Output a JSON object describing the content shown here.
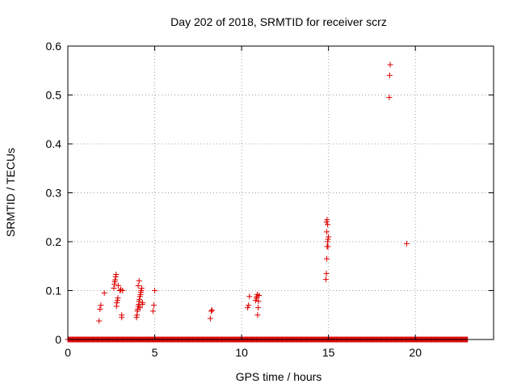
{
  "chart_data": {
    "type": "scatter",
    "title": "Day 202 of 2018, SRMTID for receiver scrz",
    "xlabel": "GPS time / hours",
    "ylabel": "SRMTID / TECUs",
    "xlim": [
      0,
      24.5
    ],
    "ylim": [
      0,
      0.6
    ],
    "xticks": [
      0,
      5,
      10,
      15,
      20
    ],
    "yticks": [
      0,
      0.1,
      0.2,
      0.3,
      0.4,
      0.5,
      0.6
    ],
    "xtick_labels": [
      "0",
      "5",
      "10",
      "15",
      "20"
    ],
    "ytick_labels": [
      "0",
      "0.1",
      "0.2",
      "0.3",
      "0.4",
      "0.5",
      "0.6"
    ],
    "grid": true,
    "marker": "+",
    "color": "#dd0000",
    "series": [
      {
        "name": "SRMTID",
        "x": [
          1.8,
          1.85,
          1.9,
          2.1,
          2.65,
          2.68,
          2.7,
          2.72,
          2.75,
          2.78,
          2.8,
          2.82,
          2.85,
          2.88,
          2.9,
          3.0,
          3.05,
          3.1,
          3.1,
          3.15,
          3.95,
          3.98,
          4.0,
          4.02,
          4.05,
          4.08,
          4.1,
          4.12,
          4.15,
          4.18,
          4.2,
          4.22,
          4.25,
          4.28,
          4.3,
          4.05,
          4.1,
          4.15,
          4.9,
          4.95,
          5.0,
          8.2,
          8.25,
          8.3,
          10.35,
          10.4,
          10.45,
          10.8,
          10.85,
          10.88,
          10.9,
          10.92,
          10.95,
          10.97,
          11.0,
          14.85,
          14.88,
          14.9,
          14.92,
          14.95,
          14.97,
          15.0,
          14.9,
          14.95,
          14.88,
          14.92,
          14.97,
          18.5,
          18.52,
          18.55,
          19.5
        ],
        "y": [
          0.038,
          0.062,
          0.07,
          0.095,
          0.105,
          0.113,
          0.118,
          0.122,
          0.128,
          0.133,
          0.068,
          0.075,
          0.08,
          0.085,
          0.11,
          0.1,
          0.102,
          0.045,
          0.05,
          0.1,
          0.045,
          0.05,
          0.058,
          0.062,
          0.068,
          0.072,
          0.078,
          0.082,
          0.088,
          0.092,
          0.097,
          0.1,
          0.105,
          0.072,
          0.075,
          0.11,
          0.12,
          0.065,
          0.058,
          0.07,
          0.1,
          0.043,
          0.058,
          0.06,
          0.065,
          0.07,
          0.088,
          0.08,
          0.085,
          0.088,
          0.092,
          0.05,
          0.065,
          0.078,
          0.09,
          0.123,
          0.135,
          0.165,
          0.19,
          0.2,
          0.205,
          0.21,
          0.22,
          0.235,
          0.24,
          0.245,
          0.19,
          0.495,
          0.54,
          0.562,
          0.196
        ]
      }
    ],
    "baseline_x_range": [
      0,
      23
    ]
  }
}
